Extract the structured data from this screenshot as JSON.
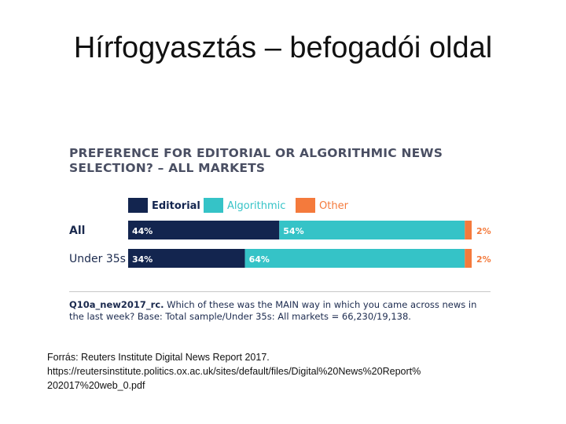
{
  "slide": {
    "title": "Hírfogyasztás – befogadói oldal",
    "source_lines": [
      "Forrás: Reuters Institute Digital News Report  2017.",
      "https://reutersinstitute.politics.ox.ac.uk/sites/default/files/Digital%20News%20Report%",
      "202017%20web_0.pdf"
    ]
  },
  "chart_data": {
    "type": "bar",
    "orientation": "horizontal",
    "stacked": true,
    "title_lines": [
      "PREFERENCE FOR EDITORIAL OR ALGORITHMIC NEWS",
      "SELECTION? – ALL MARKETS"
    ],
    "categories": [
      "All",
      "Under 35s"
    ],
    "series": [
      {
        "name": "Editorial",
        "values": [
          44,
          34
        ],
        "labels": [
          "44%",
          "34%"
        ],
        "color": "#13254f"
      },
      {
        "name": "Algorithmic",
        "values": [
          54,
          64
        ],
        "labels": [
          "54%",
          "64%"
        ],
        "color": "#35c3c7"
      },
      {
        "name": "Other",
        "values": [
          2,
          2
        ],
        "labels": [
          "2%",
          "2%"
        ],
        "color": "#f47a3c"
      }
    ],
    "xlim": [
      0,
      100
    ],
    "legend": "top",
    "grid": false,
    "footnote": {
      "question": "Q10a_new2017_rc.",
      "text": "Which of these was the MAIN way in which you came across news in the last week? Base: Total sample/Under 35s: All markets = 66,230/19,138."
    }
  }
}
